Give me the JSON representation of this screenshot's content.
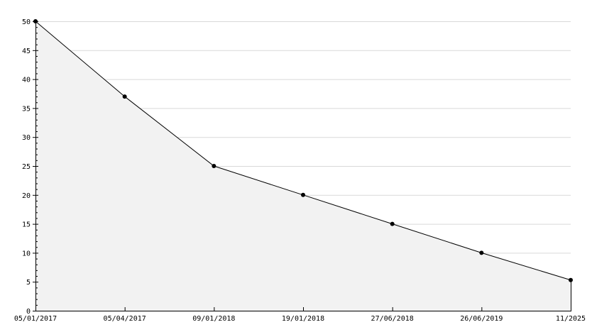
{
  "chart_data": {
    "type": "area",
    "title": "",
    "xlabel": "",
    "ylabel": "",
    "categories": [
      "05/01/2017",
      "05/04/2017",
      "09/01/2018",
      "19/01/2018",
      "27/06/2018",
      "26/06/2019",
      "11/2025"
    ],
    "values": [
      50,
      37,
      25,
      20,
      15,
      10,
      5.3
    ],
    "ylim": [
      0,
      50
    ],
    "yticks": [
      0,
      5,
      10,
      15,
      20,
      25,
      30,
      35,
      40,
      45,
      50
    ],
    "grid": true,
    "legend": "none",
    "colors": {
      "line": "#000000",
      "fill": "#f2f2f2",
      "grid": "#d9d9d9",
      "marker": "#000000"
    }
  }
}
